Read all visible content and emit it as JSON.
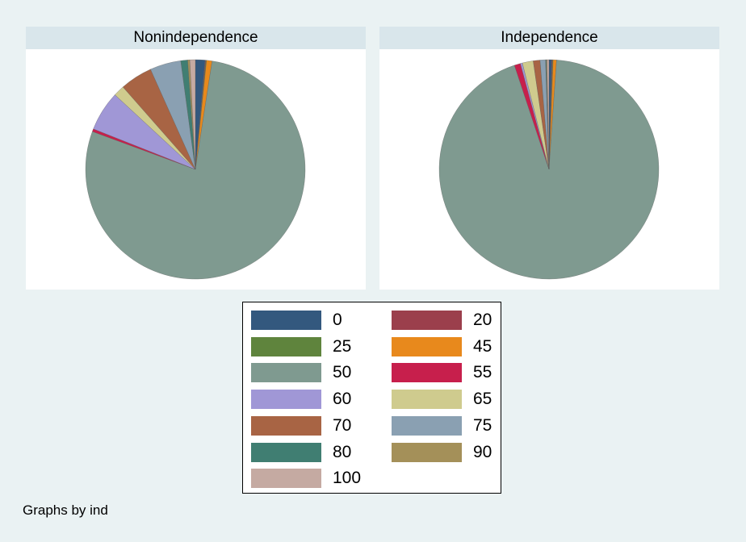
{
  "note": "Graphs by ind",
  "chart_data": [
    {
      "type": "pie",
      "title": "Nonindependence",
      "slices": [
        {
          "label": "0",
          "value": 1.4,
          "color": "#33587e"
        },
        {
          "label": "20",
          "value": 0.1,
          "color": "#9b3f4c"
        },
        {
          "label": "25",
          "value": 0.1,
          "color": "#5f843d"
        },
        {
          "label": "45",
          "value": 0.8,
          "color": "#e8891c"
        },
        {
          "label": "50",
          "value": 77.0,
          "color": "#7f9a90"
        },
        {
          "label": "55",
          "value": 0.4,
          "color": "#c71f4c"
        },
        {
          "label": "60",
          "value": 5.8,
          "color": "#a097d6"
        },
        {
          "label": "65",
          "value": 1.6,
          "color": "#cfcb8e"
        },
        {
          "label": "70",
          "value": 4.7,
          "color": "#a86444"
        },
        {
          "label": "75",
          "value": 4.5,
          "color": "#8aa0b2"
        },
        {
          "label": "80",
          "value": 1.0,
          "color": "#407e72"
        },
        {
          "label": "90",
          "value": 0.3,
          "color": "#a49059"
        },
        {
          "label": "100",
          "value": 0.8,
          "color": "#c5aaa2"
        }
      ]
    },
    {
      "type": "pie",
      "title": "Independence",
      "slices": [
        {
          "label": "0",
          "value": 0.4,
          "color": "#33587e"
        },
        {
          "label": "20",
          "value": 0.1,
          "color": "#9b3f4c"
        },
        {
          "label": "25",
          "value": 0.1,
          "color": "#5f843d"
        },
        {
          "label": "45",
          "value": 0.5,
          "color": "#e8891c"
        },
        {
          "label": "50",
          "value": 93.8,
          "color": "#7f9a90"
        },
        {
          "label": "55",
          "value": 0.9,
          "color": "#c71f4c"
        },
        {
          "label": "60",
          "value": 0.3,
          "color": "#a097d6"
        },
        {
          "label": "65",
          "value": 1.6,
          "color": "#cfcb8e"
        },
        {
          "label": "70",
          "value": 1.0,
          "color": "#a86444"
        },
        {
          "label": "75",
          "value": 0.8,
          "color": "#8aa0b2"
        },
        {
          "label": "80",
          "value": 0.1,
          "color": "#407e72"
        },
        {
          "label": "90",
          "value": 0.1,
          "color": "#a49059"
        },
        {
          "label": "100",
          "value": 0.3,
          "color": "#c5aaa2"
        }
      ]
    }
  ],
  "legend": {
    "items": [
      {
        "label": "0",
        "color": "#33587e"
      },
      {
        "label": "20",
        "color": "#9b3f4c"
      },
      {
        "label": "25",
        "color": "#5f843d"
      },
      {
        "label": "45",
        "color": "#e8891c"
      },
      {
        "label": "50",
        "color": "#7f9a90"
      },
      {
        "label": "55",
        "color": "#c71f4c"
      },
      {
        "label": "60",
        "color": "#a097d6"
      },
      {
        "label": "65",
        "color": "#cfcb8e"
      },
      {
        "label": "70",
        "color": "#a86444"
      },
      {
        "label": "75",
        "color": "#8aa0b2"
      },
      {
        "label": "80",
        "color": "#407e72"
      },
      {
        "label": "90",
        "color": "#a49059"
      },
      {
        "label": "100",
        "color": "#c5aaa2"
      }
    ]
  }
}
